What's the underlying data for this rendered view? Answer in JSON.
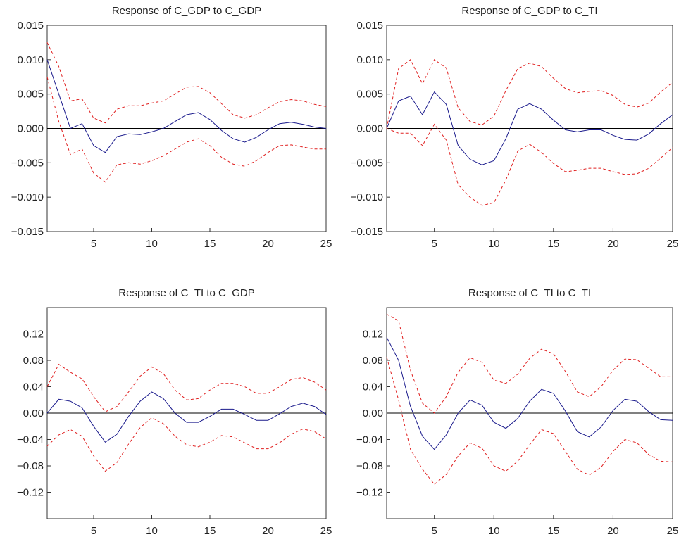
{
  "chart_data": [
    {
      "type": "line",
      "title": "Response of C_GDP to C_GDP",
      "xlabel": "",
      "ylabel": "",
      "xlim": [
        1,
        25
      ],
      "ylim": [
        -0.015,
        0.015
      ],
      "x_ticks": [
        5,
        10,
        15,
        20,
        25
      ],
      "x_tick_labels": [
        "5",
        "10",
        "15",
        "20",
        "25"
      ],
      "y_ticks": [
        -0.015,
        -0.01,
        -0.005,
        0.0,
        0.005,
        0.01,
        0.015
      ],
      "y_tick_labels": [
        "−0.015",
        "−0.010",
        "−0.005",
        "0.000",
        "0.005",
        "0.010",
        "0.015"
      ],
      "x": [
        1,
        2,
        3,
        4,
        5,
        6,
        7,
        8,
        9,
        10,
        11,
        12,
        13,
        14,
        15,
        16,
        17,
        18,
        19,
        20,
        21,
        22,
        23,
        24,
        25
      ],
      "series": [
        {
          "color": "#1a1a8c",
          "style": "solid",
          "values": [
            0.01,
            0.005,
            0.0,
            0.0007,
            -0.0025,
            -0.0035,
            -0.0012,
            -0.0008,
            -0.0009,
            -0.0005,
            0.0,
            0.001,
            0.002,
            0.0023,
            0.0013,
            -0.0003,
            -0.0015,
            -0.002,
            -0.0013,
            -0.0002,
            0.0007,
            0.0009,
            0.0006,
            0.0002,
            0.0
          ]
        },
        {
          "color": "#e02020",
          "style": "dashed",
          "values": [
            0.0125,
            0.009,
            0.004,
            0.0043,
            0.0015,
            0.0008,
            0.0028,
            0.0033,
            0.0033,
            0.0037,
            0.004,
            0.005,
            0.006,
            0.0061,
            0.0052,
            0.0036,
            0.002,
            0.0015,
            0.002,
            0.003,
            0.0039,
            0.0042,
            0.004,
            0.0035,
            0.0032
          ]
        },
        {
          "color": "#e02020",
          "style": "dashed",
          "values": [
            0.0075,
            0.001,
            -0.0038,
            -0.003,
            -0.0065,
            -0.0078,
            -0.0053,
            -0.005,
            -0.0052,
            -0.0047,
            -0.004,
            -0.003,
            -0.002,
            -0.0015,
            -0.0025,
            -0.0042,
            -0.0052,
            -0.0055,
            -0.0047,
            -0.0035,
            -0.0025,
            -0.0024,
            -0.0027,
            -0.003,
            -0.003
          ]
        }
      ]
    },
    {
      "type": "line",
      "title": "Response of C_GDP to C_TI",
      "xlabel": "",
      "ylabel": "",
      "xlim": [
        1,
        25
      ],
      "ylim": [
        -0.015,
        0.015
      ],
      "x_ticks": [
        5,
        10,
        15,
        20,
        25
      ],
      "x_tick_labels": [
        "5",
        "10",
        "15",
        "20",
        "25"
      ],
      "y_ticks": [
        -0.015,
        -0.01,
        -0.005,
        0.0,
        0.005,
        0.01,
        0.015
      ],
      "y_tick_labels": [
        "−0.015",
        "−0.010",
        "−0.005",
        "0.000",
        "0.005",
        "0.010",
        "0.015"
      ],
      "x": [
        1,
        2,
        3,
        4,
        5,
        6,
        7,
        8,
        9,
        10,
        11,
        12,
        13,
        14,
        15,
        16,
        17,
        18,
        19,
        20,
        21,
        22,
        23,
        24,
        25
      ],
      "series": [
        {
          "color": "#1a1a8c",
          "style": "solid",
          "values": [
            0.0,
            0.004,
            0.0047,
            0.002,
            0.0053,
            0.0035,
            -0.0025,
            -0.0045,
            -0.0053,
            -0.0047,
            -0.0015,
            0.0028,
            0.0036,
            0.0028,
            0.0012,
            -0.0002,
            -0.0005,
            -0.0002,
            -0.0002,
            -0.001,
            -0.0016,
            -0.0017,
            -0.0008,
            0.0007,
            0.002
          ]
        },
        {
          "color": "#e02020",
          "style": "dashed",
          "values": [
            0.0,
            0.0087,
            0.01,
            0.0065,
            0.01,
            0.0088,
            0.003,
            0.001,
            0.0005,
            0.0018,
            0.0055,
            0.0087,
            0.0095,
            0.009,
            0.0073,
            0.0058,
            0.0052,
            0.0054,
            0.0055,
            0.0048,
            0.0035,
            0.0031,
            0.0037,
            0.0053,
            0.0067
          ]
        },
        {
          "color": "#e02020",
          "style": "dashed",
          "values": [
            0.0,
            -0.0007,
            -0.0007,
            -0.0025,
            0.0006,
            -0.0017,
            -0.0082,
            -0.01,
            -0.0112,
            -0.0108,
            -0.0075,
            -0.0033,
            -0.0023,
            -0.0035,
            -0.0051,
            -0.0063,
            -0.0061,
            -0.0058,
            -0.0058,
            -0.0063,
            -0.0067,
            -0.0066,
            -0.0058,
            -0.0043,
            -0.0028
          ]
        }
      ]
    },
    {
      "type": "line",
      "title": "Response of C_TI to C_GDP",
      "xlabel": "",
      "ylabel": "",
      "xlim": [
        1,
        25
      ],
      "ylim": [
        -0.16,
        0.16
      ],
      "x_ticks": [
        5,
        10,
        15,
        20,
        25
      ],
      "x_tick_labels": [
        "5",
        "10",
        "15",
        "20",
        "25"
      ],
      "y_ticks": [
        -0.12,
        -0.08,
        -0.04,
        0.0,
        0.04,
        0.08,
        0.12
      ],
      "y_tick_labels": [
        "−0.12",
        "−0.08",
        "−0.04",
        "0.00",
        "0.04",
        "0.08",
        "0.12"
      ],
      "x": [
        1,
        2,
        3,
        4,
        5,
        6,
        7,
        8,
        9,
        10,
        11,
        12,
        13,
        14,
        15,
        16,
        17,
        18,
        19,
        20,
        21,
        22,
        23,
        24,
        25
      ],
      "series": [
        {
          "color": "#1a1a8c",
          "style": "solid",
          "values": [
            0.0,
            0.021,
            0.018,
            0.008,
            -0.02,
            -0.044,
            -0.032,
            -0.005,
            0.018,
            0.032,
            0.022,
            0.0,
            -0.014,
            -0.014,
            -0.005,
            0.006,
            0.006,
            -0.002,
            -0.011,
            -0.011,
            -0.001,
            0.01,
            0.015,
            0.01,
            -0.002
          ]
        },
        {
          "color": "#e02020",
          "style": "dashed",
          "values": [
            0.04,
            0.074,
            0.062,
            0.052,
            0.025,
            0.002,
            0.01,
            0.032,
            0.056,
            0.07,
            0.06,
            0.035,
            0.02,
            0.022,
            0.035,
            0.045,
            0.045,
            0.04,
            0.03,
            0.03,
            0.04,
            0.051,
            0.054,
            0.047,
            0.035
          ]
        },
        {
          "color": "#e02020",
          "style": "dashed",
          "values": [
            -0.05,
            -0.033,
            -0.025,
            -0.035,
            -0.065,
            -0.088,
            -0.075,
            -0.047,
            -0.022,
            -0.007,
            -0.016,
            -0.035,
            -0.048,
            -0.051,
            -0.044,
            -0.034,
            -0.036,
            -0.045,
            -0.054,
            -0.054,
            -0.045,
            -0.032,
            -0.024,
            -0.028,
            -0.039
          ]
        }
      ]
    },
    {
      "type": "line",
      "title": "Response of C_TI to C_TI",
      "xlabel": "",
      "ylabel": "",
      "xlim": [
        1,
        25
      ],
      "ylim": [
        -0.16,
        0.16
      ],
      "x_ticks": [
        5,
        10,
        15,
        20,
        25
      ],
      "x_tick_labels": [
        "5",
        "10",
        "15",
        "20",
        "25"
      ],
      "y_ticks": [
        -0.12,
        -0.08,
        -0.04,
        0.0,
        0.04,
        0.08,
        0.12
      ],
      "y_tick_labels": [
        "−0.12",
        "−0.08",
        "−0.04",
        "0.00",
        "0.04",
        "0.08",
        "0.12"
      ],
      "x": [
        1,
        2,
        3,
        4,
        5,
        6,
        7,
        8,
        9,
        10,
        11,
        12,
        13,
        14,
        15,
        16,
        17,
        18,
        19,
        20,
        21,
        22,
        23,
        24,
        25
      ],
      "series": [
        {
          "color": "#1a1a8c",
          "style": "solid",
          "values": [
            0.115,
            0.08,
            0.01,
            -0.035,
            -0.055,
            -0.033,
            0.0,
            0.02,
            0.012,
            -0.014,
            -0.023,
            -0.008,
            0.018,
            0.036,
            0.03,
            0.003,
            -0.028,
            -0.036,
            -0.021,
            0.004,
            0.021,
            0.018,
            0.002,
            -0.01,
            -0.011
          ]
        },
        {
          "color": "#e02020",
          "style": "dashed",
          "values": [
            0.15,
            0.14,
            0.065,
            0.015,
            0.0,
            0.025,
            0.062,
            0.084,
            0.077,
            0.05,
            0.045,
            0.059,
            0.083,
            0.097,
            0.09,
            0.063,
            0.032,
            0.025,
            0.04,
            0.065,
            0.082,
            0.081,
            0.068,
            0.055,
            0.055
          ]
        },
        {
          "color": "#e02020",
          "style": "dashed",
          "values": [
            0.085,
            0.02,
            -0.055,
            -0.085,
            -0.108,
            -0.093,
            -0.065,
            -0.045,
            -0.053,
            -0.08,
            -0.088,
            -0.073,
            -0.048,
            -0.025,
            -0.031,
            -0.058,
            -0.085,
            -0.094,
            -0.082,
            -0.058,
            -0.04,
            -0.045,
            -0.063,
            -0.073,
            -0.074
          ]
        }
      ]
    }
  ]
}
